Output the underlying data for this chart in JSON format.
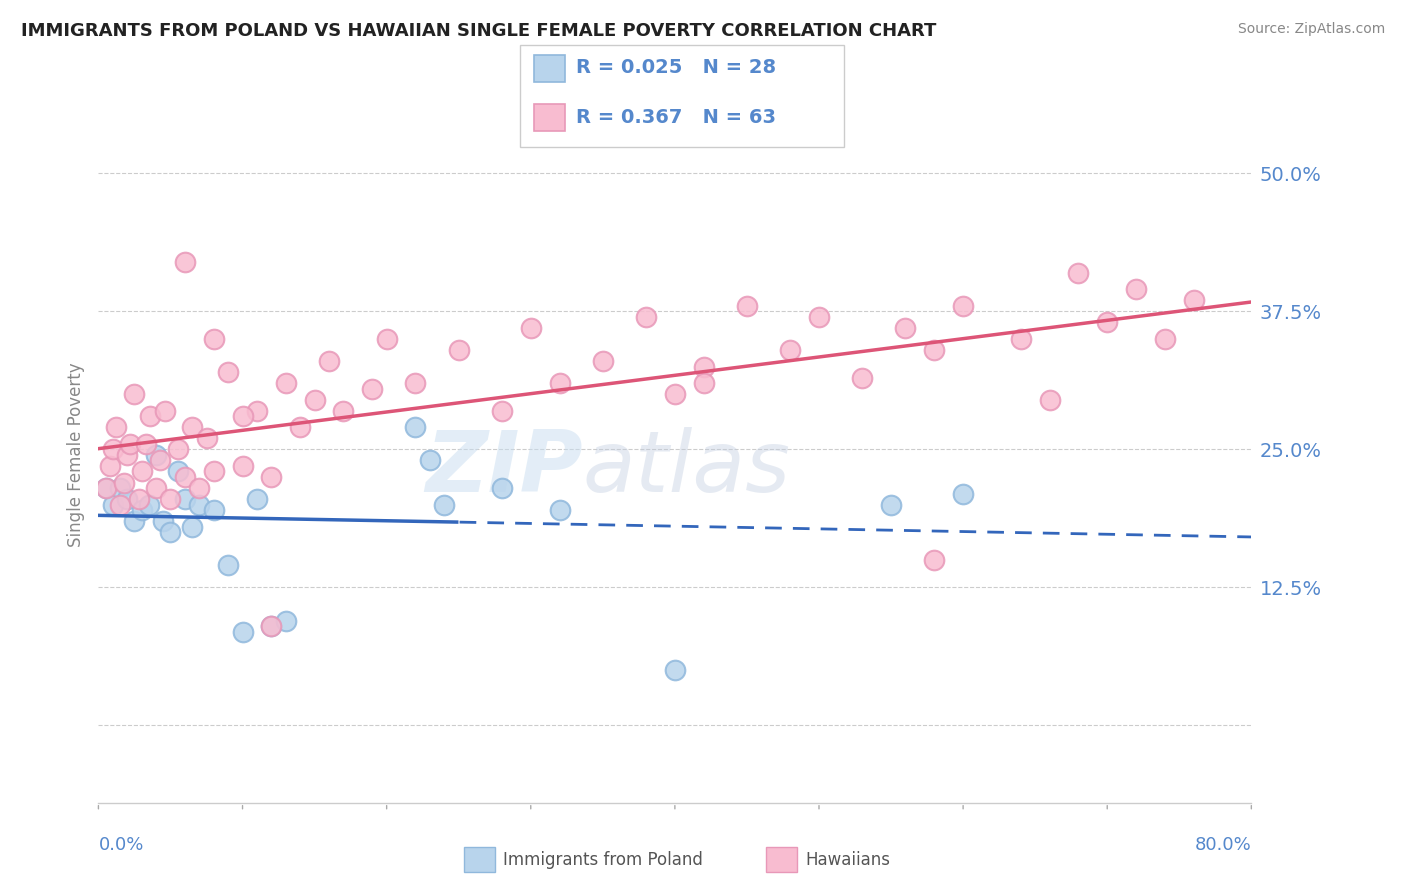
{
  "title": "IMMIGRANTS FROM POLAND VS HAWAIIAN SINGLE FEMALE POVERTY CORRELATION CHART",
  "source_text": "Source: ZipAtlas.com",
  "ylabel": "Single Female Poverty",
  "ytick_vals": [
    0.0,
    0.125,
    0.25,
    0.375,
    0.5
  ],
  "ytick_labels": [
    "",
    "12.5%",
    "25.0%",
    "37.5%",
    "50.0%"
  ],
  "xlim": [
    0.0,
    0.8
  ],
  "ylim": [
    -0.07,
    0.56
  ],
  "legend_r1": "R = 0.025",
  "legend_n1": "N = 28",
  "legend_r2": "R = 0.367",
  "legend_n2": "N = 63",
  "color_poland_fill": "#b8d4ec",
  "color_poland_edge": "#90b8dc",
  "color_hawaii_fill": "#f8bcd0",
  "color_hawaii_edge": "#e898b8",
  "color_poland_line": "#3366bb",
  "color_hawaii_line": "#dd5577",
  "color_axis_text": "#5588cc",
  "color_grid": "#cccccc",
  "watermark": "ZIPatlas",
  "poland_x": [
    0.005,
    0.01,
    0.015,
    0.02,
    0.025,
    0.03,
    0.035,
    0.04,
    0.045,
    0.05,
    0.055,
    0.06,
    0.065,
    0.07,
    0.08,
    0.09,
    0.1,
    0.11,
    0.12,
    0.13,
    0.22,
    0.23,
    0.24,
    0.28,
    0.32,
    0.4,
    0.55,
    0.6
  ],
  "poland_y": [
    0.215,
    0.2,
    0.215,
    0.205,
    0.185,
    0.195,
    0.2,
    0.245,
    0.185,
    0.175,
    0.23,
    0.205,
    0.18,
    0.2,
    0.195,
    0.145,
    0.085,
    0.205,
    0.09,
    0.095,
    0.27,
    0.24,
    0.2,
    0.215,
    0.195,
    0.05,
    0.2,
    0.21
  ],
  "hawaii_x": [
    0.005,
    0.008,
    0.01,
    0.012,
    0.015,
    0.018,
    0.02,
    0.022,
    0.025,
    0.028,
    0.03,
    0.033,
    0.036,
    0.04,
    0.043,
    0.046,
    0.05,
    0.055,
    0.06,
    0.065,
    0.07,
    0.075,
    0.08,
    0.09,
    0.1,
    0.11,
    0.12,
    0.13,
    0.14,
    0.15,
    0.16,
    0.17,
    0.19,
    0.2,
    0.22,
    0.25,
    0.28,
    0.3,
    0.32,
    0.35,
    0.38,
    0.42,
    0.45,
    0.48,
    0.5,
    0.53,
    0.56,
    0.6,
    0.64,
    0.68,
    0.7,
    0.72,
    0.74,
    0.76,
    0.4,
    0.42,
    0.58,
    0.66,
    0.58,
    0.06,
    0.08,
    0.1,
    0.12
  ],
  "hawaii_y": [
    0.215,
    0.235,
    0.25,
    0.27,
    0.2,
    0.22,
    0.245,
    0.255,
    0.3,
    0.205,
    0.23,
    0.255,
    0.28,
    0.215,
    0.24,
    0.285,
    0.205,
    0.25,
    0.225,
    0.27,
    0.215,
    0.26,
    0.23,
    0.32,
    0.235,
    0.285,
    0.225,
    0.31,
    0.27,
    0.295,
    0.33,
    0.285,
    0.305,
    0.35,
    0.31,
    0.34,
    0.285,
    0.36,
    0.31,
    0.33,
    0.37,
    0.325,
    0.38,
    0.34,
    0.37,
    0.315,
    0.36,
    0.38,
    0.35,
    0.41,
    0.365,
    0.395,
    0.35,
    0.385,
    0.3,
    0.31,
    0.34,
    0.295,
    0.15,
    0.42,
    0.35,
    0.28,
    0.09
  ]
}
